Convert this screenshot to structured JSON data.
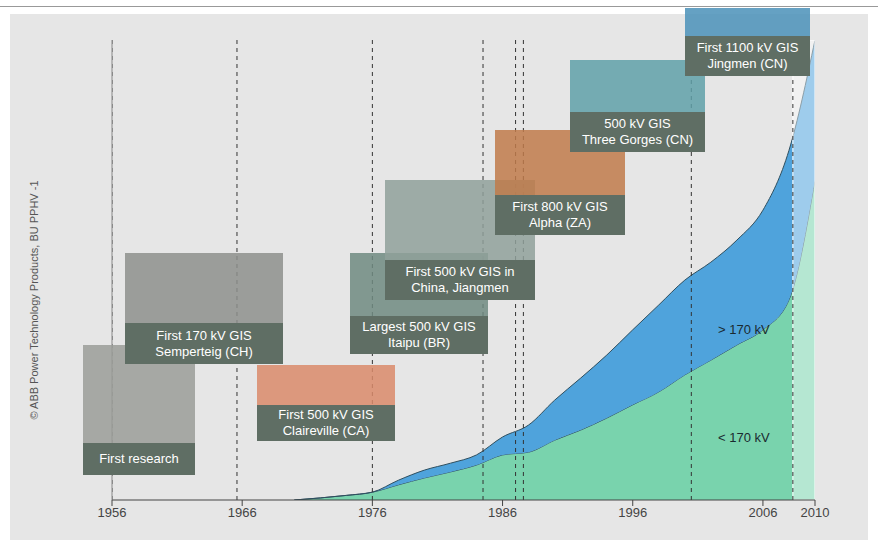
{
  "chart_data": {
    "type": "area",
    "stacked": true,
    "copyright": "© ABB Power Technology Products, BU PPHV -1",
    "x": [
      1970,
      1974,
      1976,
      1978,
      1980,
      1982,
      1984,
      1986,
      1988,
      1990,
      1992,
      1994,
      1996,
      1998,
      2000,
      2002,
      2004,
      2006,
      2008,
      2010
    ],
    "series": [
      {
        "name": "< 170 kV",
        "color": "#79d3ad",
        "values": [
          0,
          1,
          1.7,
          3.3,
          4.8,
          6.1,
          7.6,
          9.8,
          10.4,
          13,
          15.2,
          17.8,
          20.7,
          23.5,
          27.2,
          30.4,
          33.7,
          37,
          43.5,
          69.6
        ]
      },
      {
        "name": "> 170 kV",
        "color": "#4fa3dc",
        "values": [
          0,
          0,
          0,
          1,
          1.7,
          1.9,
          2.2,
          3.9,
          5.9,
          8.7,
          11.3,
          13.7,
          16.3,
          18.9,
          20.6,
          21.3,
          22.8,
          26,
          32.5,
          30.4
        ]
      }
    ],
    "xlim": [
      1956,
      2010
    ],
    "xticks": [
      1956,
      1966,
      1976,
      1986,
      1996,
      2006,
      2010
    ],
    "ylim": [
      0,
      100
    ],
    "tick_labels": "x",
    "shaded_from": 2008.3,
    "annotations": [
      {
        "x": 1956,
        "lines": [
          "First research"
        ]
      },
      {
        "x": 1965.6,
        "lines": [
          "First 170 kV GIS",
          "Semperteig (CH)"
        ]
      },
      {
        "x": 1976,
        "lines": [
          "First 500 kV GIS",
          "Claireville (CA)"
        ]
      },
      {
        "x": 1984.5,
        "lines": [
          "Largest 500 kV GIS",
          "Itaipu (BR)"
        ]
      },
      {
        "x": 1987,
        "lines": [
          "First 500 kV GIS in",
          "China, Jiangmen"
        ]
      },
      {
        "x": 1987.6,
        "lines": [
          "First 800 kV GIS",
          "Alpha (ZA)"
        ]
      },
      {
        "x": 2000.5,
        "lines": [
          "500 kV GIS",
          "Three Gorges (CN)"
        ]
      },
      {
        "x": 2008.3,
        "lines": [
          "First 1100 kV GIS",
          "Jingmen (CN)"
        ]
      }
    ]
  }
}
